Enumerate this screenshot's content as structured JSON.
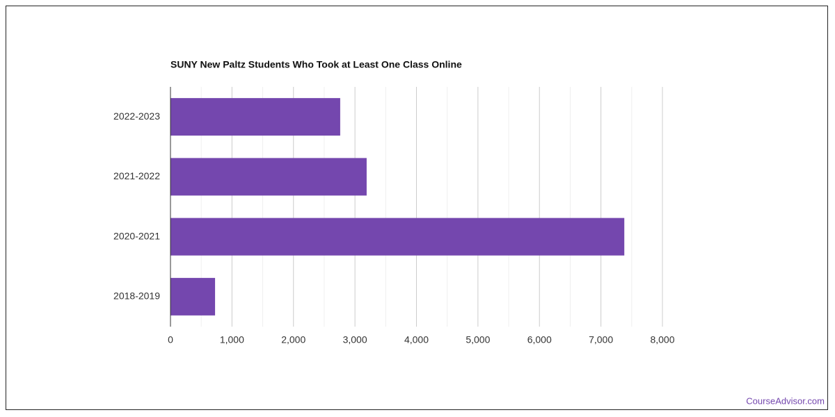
{
  "chart_data": {
    "type": "bar",
    "orientation": "horizontal",
    "title": "SUNY New Paltz Students Who Took at Least One Class Online",
    "categories": [
      "2022-2023",
      "2021-2022",
      "2020-2021",
      "2018-2019"
    ],
    "values": [
      2760,
      3190,
      7380,
      725
    ],
    "color": "#7447ae",
    "xlim": [
      0,
      8000
    ],
    "xticks": [
      0,
      {
        "value": 1000,
        "label": "1,000"
      },
      {
        "value": 2000,
        "label": "2,000"
      },
      {
        "value": 3000,
        "label": "3,000"
      },
      {
        "value": 4000,
        "label": "4,000"
      },
      {
        "value": 5000,
        "label": "5,000"
      },
      {
        "value": 6000,
        "label": "6,000"
      },
      {
        "value": 7000,
        "label": "7,000"
      },
      {
        "value": 8000,
        "label": "8,000"
      }
    ],
    "grid": true
  },
  "footer": "CourseAdvisor.com"
}
